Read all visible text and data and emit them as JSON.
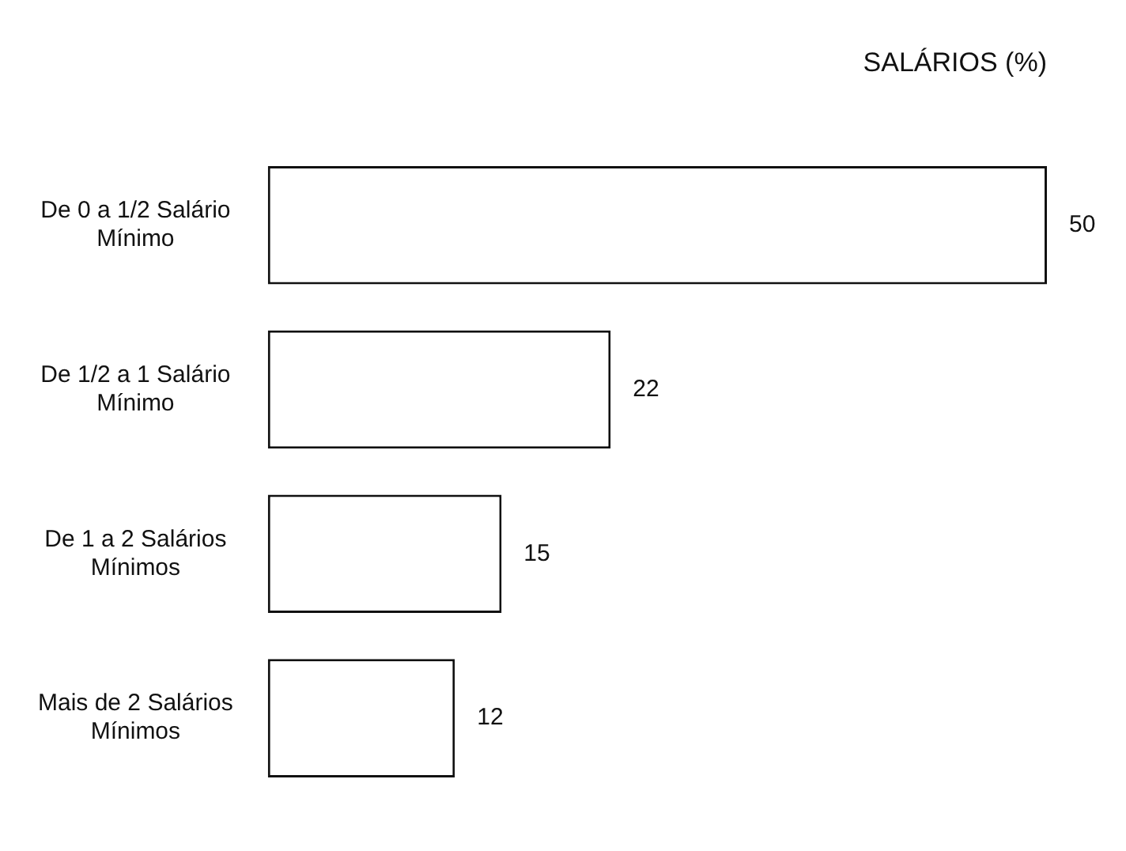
{
  "chart_data": {
    "type": "bar",
    "orientation": "horizontal",
    "title": "SALÁRIOS (%)",
    "categories": [
      "De 0 a 1/2 Salário Mínimo",
      "De 1/2 a 1 Salário Mínimo",
      "De 1 a 2 Salários Mínimos",
      "Mais de 2 Salários Mínimos"
    ],
    "values": [
      50,
      22,
      15,
      12
    ],
    "color": "#ffffff",
    "data_labels": true,
    "tick_labels": "y",
    "legend": false
  }
}
